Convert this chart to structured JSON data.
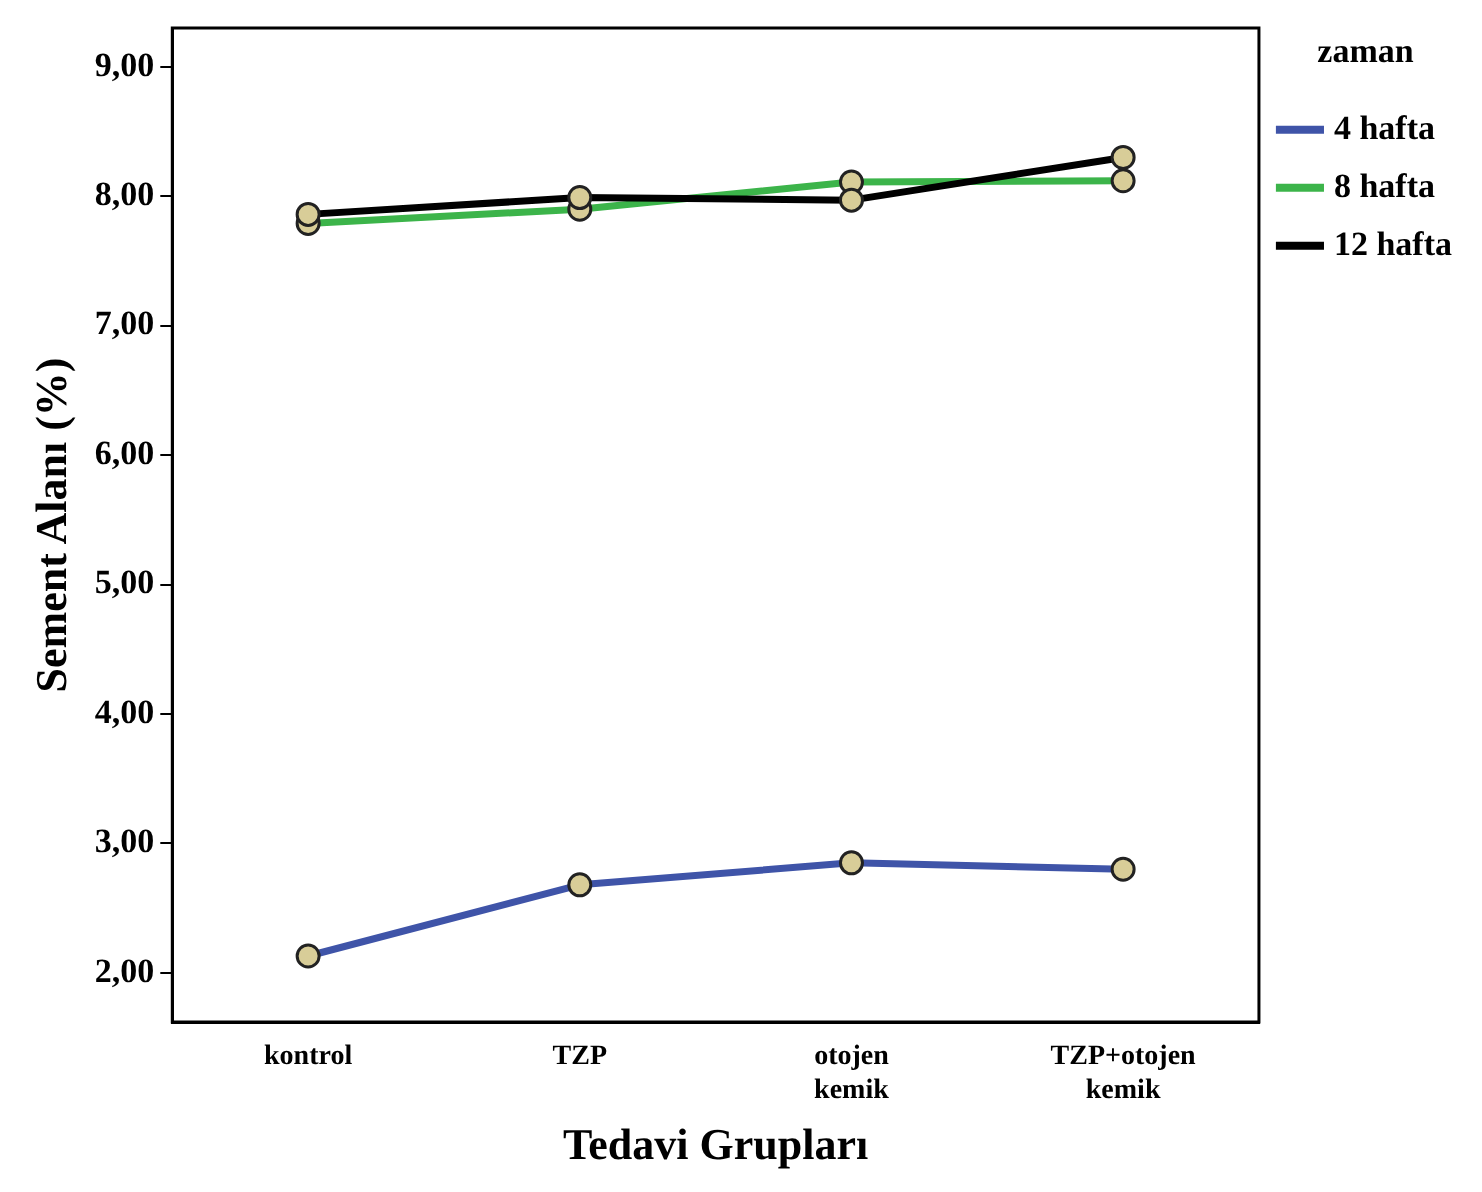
{
  "chart_data": {
    "type": "line",
    "xlabel": "Tedavi Grupları",
    "ylabel": "Sement Alanı (%)",
    "legend_title": "zaman",
    "legend": "top right",
    "marker": "circle",
    "grid": false,
    "categories": [
      "kontrol",
      "TZP",
      "otojen kemik",
      "TZP+otojen kemik"
    ],
    "ylim": [
      1.62,
      9.3
    ],
    "yticks": [
      {
        "value": 2,
        "label": "2,00"
      },
      {
        "value": 3,
        "label": "3,00"
      },
      {
        "value": 4,
        "label": "4,00"
      },
      {
        "value": 5,
        "label": "5,00"
      },
      {
        "value": 6,
        "label": "6,00"
      },
      {
        "value": 7,
        "label": "7,00"
      },
      {
        "value": 8,
        "label": "8,00"
      },
      {
        "value": 9,
        "label": "9,00"
      }
    ],
    "series": [
      {
        "name": "4 hafta",
        "color": "#3f54a8",
        "values": [
          2.13,
          2.68,
          2.85,
          2.8
        ]
      },
      {
        "name": "8 hafta",
        "color": "#3cb44a",
        "values": [
          7.79,
          7.9,
          8.11,
          8.12
        ]
      },
      {
        "name": "12 hafta",
        "color": "#000000",
        "values": [
          7.86,
          7.99,
          7.97,
          8.3
        ]
      }
    ]
  }
}
